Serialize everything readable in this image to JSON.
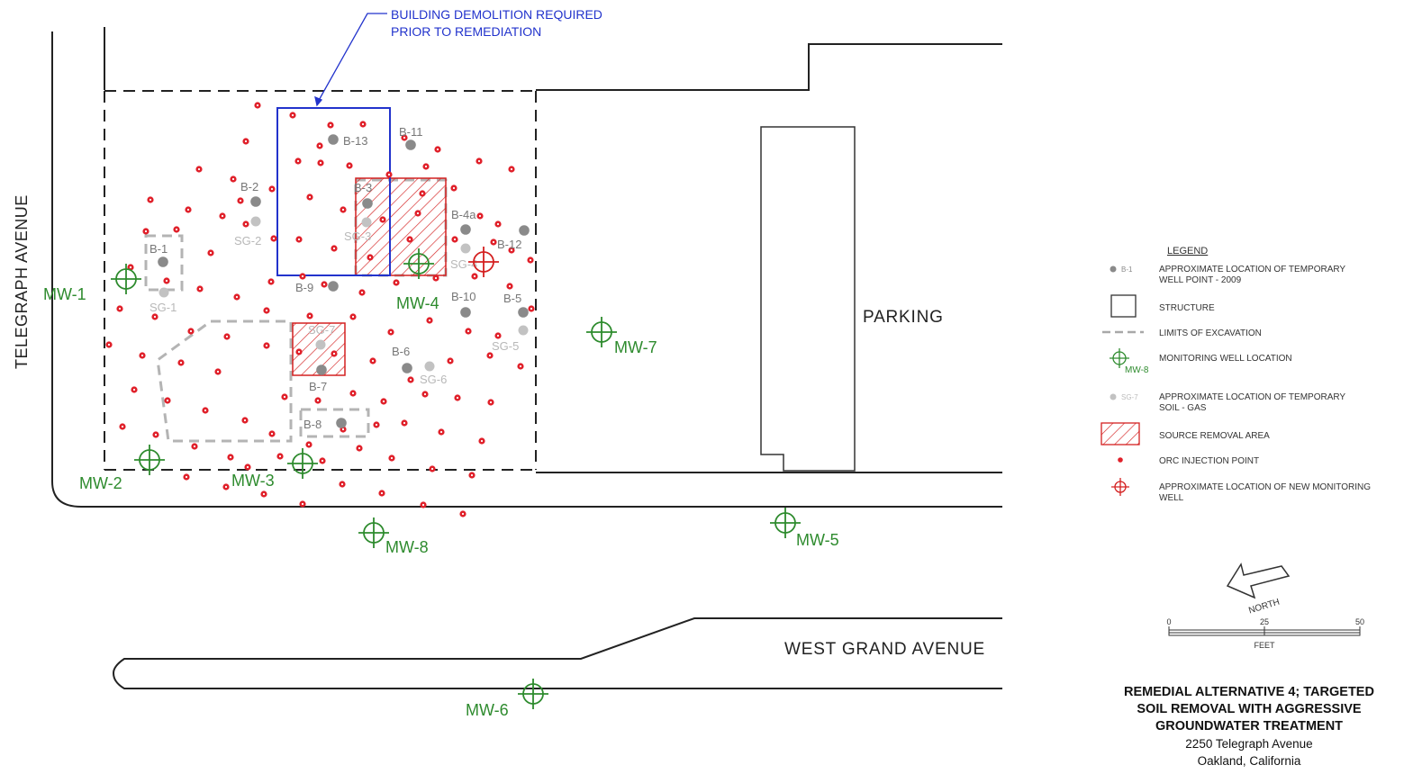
{
  "annotation": {
    "line1": "BUILDING DEMOLITION REQUIRED",
    "line2": "PRIOR TO REMEDIATION"
  },
  "streets": {
    "telegraph": "TELEGRAPH AVENUE",
    "west_grand": "WEST GRAND AVENUE",
    "parking": "PARKING"
  },
  "monitoring_wells": [
    "MW-1",
    "MW-2",
    "MW-3",
    "MW-4",
    "MW-5",
    "MW-6",
    "MW-7",
    "MW-8"
  ],
  "well_points": [
    "B-1",
    "B-2",
    "B-3",
    "B-4a",
    "B-5",
    "B-6",
    "B-7",
    "B-8",
    "B-9",
    "B-10",
    "B-11",
    "B-12",
    "B-13"
  ],
  "soil_gas": [
    "SG-1",
    "SG-2",
    "SG-3",
    "SG-4",
    "SG-5",
    "SG-6",
    "SG-7"
  ],
  "legend": {
    "title": "LEGEND",
    "well_point_sample": "B-1",
    "well_point": "APPROXIMATE LOCATION OF TEMPORARY WELL POINT - 2009",
    "structure": "STRUCTURE",
    "excavation": "LIMITS OF EXCAVATION",
    "mw_sample": "MW-8",
    "monitoring_well": "MONITORING WELL LOCATION",
    "sg_sample": "SG-7",
    "soil_gas": "APPROXIMATE LOCATION OF TEMPORARY SOIL - GAS",
    "source_removal": "SOURCE REMOVAL AREA",
    "orc": "ORC INJECTION POINT",
    "new_well": "APPROXIMATE LOCATION OF NEW MONITORING WELL"
  },
  "north": "NORTH",
  "scale": {
    "ticks": [
      "0",
      "25",
      "50"
    ],
    "unit": "FEET"
  },
  "title_block": {
    "line1": "REMEDIAL ALTERNATIVE 4;  TARGETED",
    "line2": "SOIL REMOVAL WITH AGGRESSIVE",
    "line3": "GROUNDWATER TREATMENT",
    "address": "2250 Telegraph Avenue",
    "city": "Oakland, California"
  },
  "colors": {
    "orc": "#e0202a",
    "well": "#2e8b2e",
    "well_point": "#8a8a8a",
    "soil_gas": "#c2c2c2",
    "demolition": "#2233cc",
    "source_removal": "#d42020"
  }
}
